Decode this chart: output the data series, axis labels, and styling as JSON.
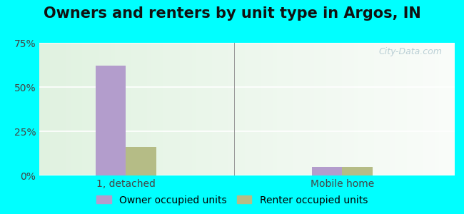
{
  "title": "Owners and renters by unit type in Argos, IN",
  "categories": [
    "1, detached",
    "Mobile home"
  ],
  "owner_values": [
    62,
    5
  ],
  "renter_values": [
    16,
    5
  ],
  "owner_color": "#b39dcc",
  "renter_color": "#b5bc86",
  "bar_width": 0.35,
  "ylim": [
    0,
    75
  ],
  "yticks": [
    0,
    25,
    50,
    75
  ],
  "yticklabels": [
    "0%",
    "25%",
    "50%",
    "75%"
  ],
  "watermark": "City-Data.com",
  "legend_owner": "Owner occupied units",
  "legend_renter": "Renter occupied units",
  "title_fontsize": 15,
  "tick_fontsize": 10,
  "legend_fontsize": 10,
  "outer_bg": "#00ffff",
  "group_positions": [
    1.0,
    3.5
  ],
  "xlim": [
    0,
    4.8
  ]
}
